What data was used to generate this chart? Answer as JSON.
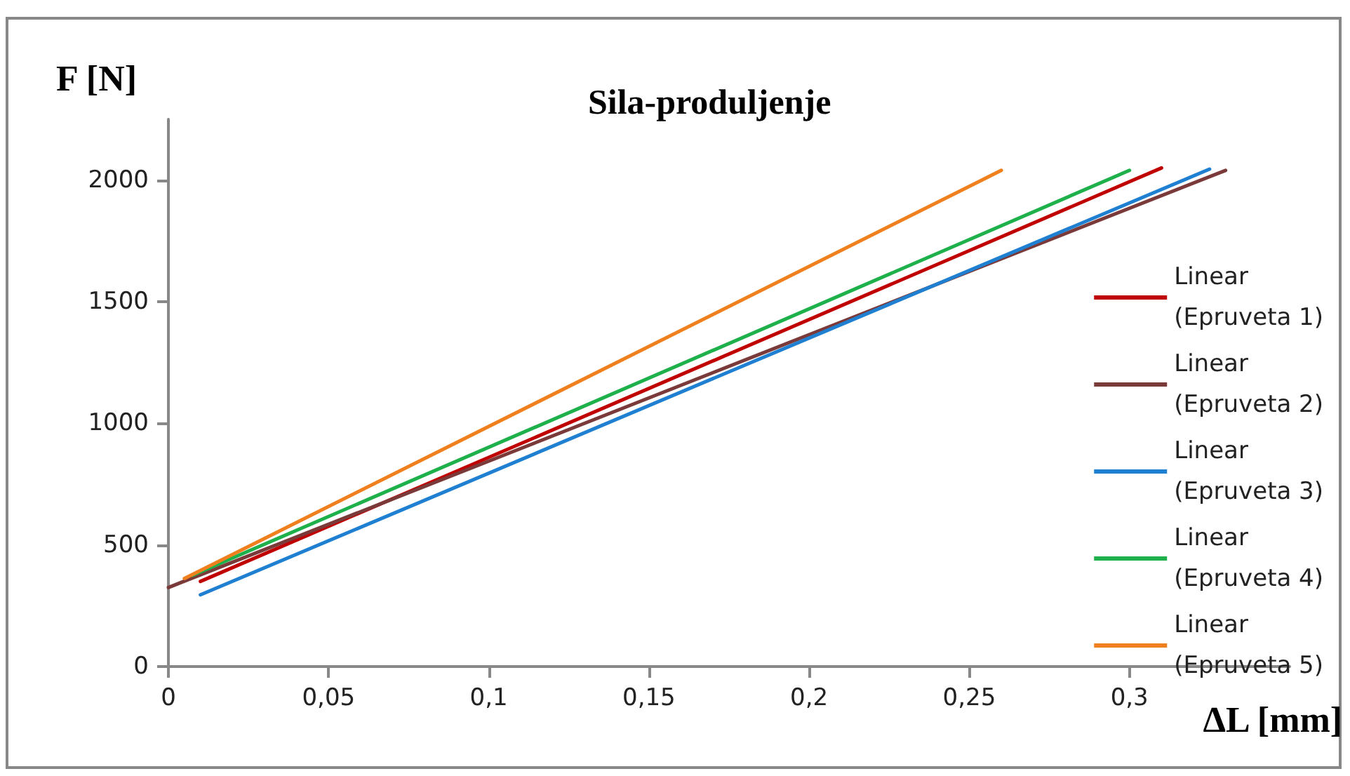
{
  "chart_data": {
    "type": "line",
    "title": "Sila-produljenje",
    "xlabel": "ΔL [mm]",
    "ylabel": "F [N]",
    "xlim": [
      0,
      0.35
    ],
    "xticks": [
      0,
      {
        "value": 0.05,
        "label": "0,05"
      },
      {
        "value": 0.1,
        "label": "0,1"
      },
      {
        "value": 0.15,
        "label": "0,15"
      },
      {
        "value": 0.2,
        "label": "0,2"
      },
      {
        "value": 0.25,
        "label": "0,25"
      },
      {
        "value": 0.3,
        "label": "0,3"
      }
    ],
    "ylim": [
      0,
      2250
    ],
    "yticks": [
      0,
      500,
      1000,
      1500,
      2000
    ],
    "grid": false,
    "legend": "right",
    "marker": "none",
    "line_style": "solid",
    "series": [
      {
        "name": "Linear\n(Epruveta 1)",
        "color": "#c00000",
        "x": [
          0.01,
          0.31
        ],
        "values": [
          350,
          2050
        ]
      },
      {
        "name": "Linear\n(Epruveta 2)",
        "color": "#7b3a3a",
        "x": [
          0,
          0.33
        ],
        "values": [
          325,
          2040
        ]
      },
      {
        "name": "Linear\n(Epruveta 3)",
        "color": "#1f7fd0",
        "x": [
          0.01,
          0.325
        ],
        "values": [
          295,
          2045
        ]
      },
      {
        "name": "Linear\n(Epruveta 4)",
        "color": "#1eb04a",
        "x": [
          0.0075,
          0.3
        ],
        "values": [
          375,
          2040
        ]
      },
      {
        "name": "Linear\n(Epruveta 5)",
        "color": "#f07f1e",
        "x": [
          0.005,
          0.26
        ],
        "values": [
          362,
          2040
        ]
      }
    ]
  }
}
